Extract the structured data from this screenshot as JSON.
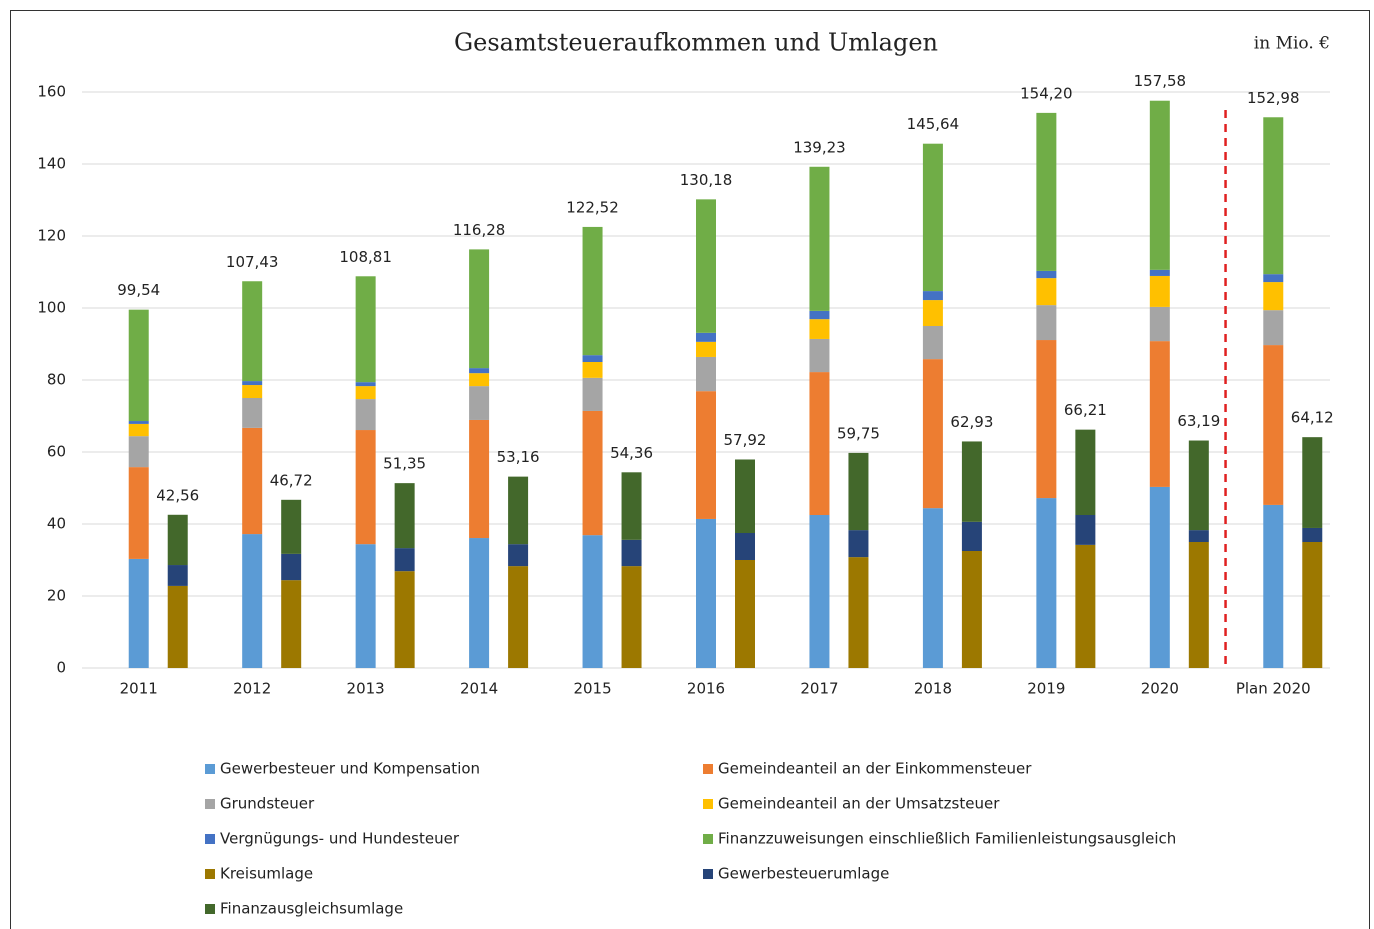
{
  "chart_data": {
    "type": "stacked_grouped_bar",
    "title": "Gesamtsteueraufkommen und Umlagen",
    "unit_label": "in Mio. €",
    "categories": [
      "2011",
      "2012",
      "2013",
      "2014",
      "2015",
      "2016",
      "2017",
      "2018",
      "2019",
      "2020",
      "Plan 2020"
    ],
    "ylim": [
      0,
      160
    ],
    "yticks": [
      0,
      20,
      40,
      60,
      80,
      100,
      120,
      140,
      160
    ],
    "grid": true,
    "legend": "bottom",
    "series": [
      {
        "name": "Gewerbesteuer und Kompensation",
        "color": "#5b9bd5",
        "stack": 0,
        "values": [
          30.3,
          37.2,
          34.4,
          36.1,
          36.9,
          41.4,
          42.5,
          44.4,
          47.2,
          50.3,
          45.3
        ]
      },
      {
        "name": "Gemeindeanteil an der Einkommensteuer",
        "color": "#ed7d31",
        "stack": 0,
        "values": [
          25.5,
          29.5,
          31.7,
          32.8,
          34.5,
          35.5,
          39.7,
          41.4,
          43.9,
          40.5,
          44.4
        ]
      },
      {
        "name": "Grundsteuer",
        "color": "#a5a5a5",
        "stack": 0,
        "values": [
          8.6,
          8.3,
          8.6,
          9.4,
          9.2,
          9.5,
          9.2,
          9.2,
          9.7,
          9.5,
          9.7
        ]
      },
      {
        "name": "Gemeindeanteil an der Umsatzsteuer",
        "color": "#ffc000",
        "stack": 0,
        "values": [
          3.4,
          3.6,
          3.6,
          3.6,
          4.4,
          4.2,
          5.5,
          7.2,
          7.5,
          8.6,
          7.8
        ]
      },
      {
        "name": "Vergnügungs- und Hundesteuer",
        "color": "#4472c4",
        "stack": 0,
        "values": [
          0.8,
          1.1,
          1.1,
          1.4,
          1.9,
          2.5,
          2.3,
          2.5,
          2.0,
          1.7,
          2.2
        ]
      },
      {
        "name": "Finanzzuweisungen einschließlich Familienleistungsausgleich",
        "color": "#70ad47",
        "stack": 0,
        "values": [
          30.94,
          27.73,
          29.41,
          32.98,
          35.62,
          37.08,
          40.03,
          40.94,
          43.9,
          46.98,
          43.58
        ]
      },
      {
        "name": "Kreisumlage",
        "color": "#9c7800",
        "stack": 1,
        "values": [
          22.8,
          24.4,
          26.9,
          28.3,
          28.3,
          30.0,
          30.8,
          32.5,
          34.2,
          35.0,
          35.0
        ]
      },
      {
        "name": "Gewerbesteuerumlage",
        "color": "#264478",
        "stack": 1,
        "values": [
          5.8,
          7.3,
          6.4,
          6.1,
          7.3,
          7.5,
          7.5,
          8.1,
          8.3,
          3.3,
          3.9
        ]
      },
      {
        "name": "Finanzausgleichsumlage",
        "color": "#43682b",
        "stack": 1,
        "values": [
          13.96,
          15.02,
          18.05,
          18.76,
          18.76,
          20.42,
          21.45,
          22.33,
          23.71,
          24.89,
          25.22
        ]
      }
    ],
    "totals": [
      {
        "values": [
          99.54,
          107.43,
          108.81,
          116.28,
          122.52,
          130.18,
          139.23,
          145.64,
          154.2,
          157.58,
          152.98
        ],
        "value_labels": [
          "99,54",
          "107,43",
          "108,81",
          "116,28",
          "122,52",
          "130,18",
          "139,23",
          "145,64",
          "154,20",
          "157,58",
          "152,98"
        ]
      },
      {
        "values": [
          42.56,
          46.72,
          51.35,
          53.16,
          54.36,
          57.92,
          59.75,
          62.93,
          66.21,
          63.19,
          64.12
        ],
        "value_labels": [
          "42,56",
          "46,72",
          "51,35",
          "53,16",
          "54,36",
          "57,92",
          "59,75",
          "62,93",
          "66,21",
          "63,19",
          "64,12"
        ]
      }
    ]
  }
}
